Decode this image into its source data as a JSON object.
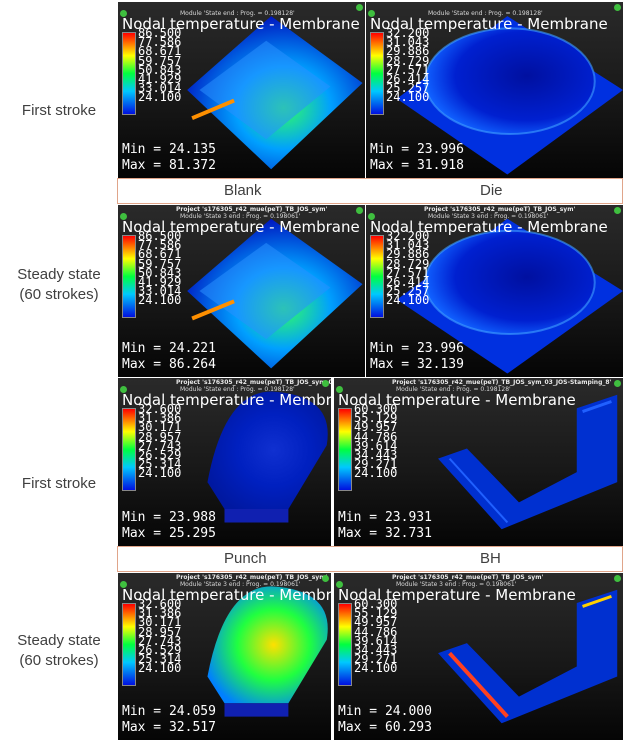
{
  "rows": [
    {
      "label": "First stroke"
    },
    {
      "label": "Steady state\n(60 strokes)"
    },
    {
      "label": "First stroke"
    },
    {
      "label": "Steady state\n(60 strokes)"
    }
  ],
  "separators": [
    {
      "left": "Blank",
      "right": "Die"
    },
    {
      "left": "Punch",
      "right": "BH"
    }
  ],
  "panels": [
    {
      "project": "",
      "module": "Module 'State end : Prog. = 0.198128'",
      "title": "Nodal temperature - Membrane",
      "ticks": [
        "86.500",
        "77.586",
        "68.671",
        "59.757",
        "50.843",
        "41.929",
        "33.014",
        "24.100"
      ],
      "min": "Min = 24.135",
      "max": "Max = 81.372"
    },
    {
      "project": "",
      "module": "Module 'State end : Prog. = 0.198128'",
      "title": "Nodal temperature - Membrane",
      "ticks": [
        "32.200",
        "31.043",
        "29.886",
        "28.729",
        "27.571",
        "26.414",
        "25.257",
        "24.100"
      ],
      "min": "Min = 23.996",
      "max": "Max = 31.918"
    },
    {
      "project": "Project 's176305_r42_mue(peT)_TB_JOS_sym'",
      "module": "Module 'State 3 end : Prog. = 0.198061'",
      "title": "Nodal temperature - Membrane",
      "ticks": [
        "86.500",
        "77.586",
        "68.671",
        "59.757",
        "50.843",
        "41.929",
        "33.014",
        "24.100"
      ],
      "min": "Min = 24.221",
      "max": "Max = 86.264"
    },
    {
      "project": "Project 's176305_r42_mue(peT)_TB_JOS_sym'",
      "module": "Module 'State 3 end : Prog. = 0.198061'",
      "title": "Nodal temperature - Membrane",
      "ticks": [
        "32.200",
        "31.043",
        "29.886",
        "28.729",
        "27.571",
        "26.414",
        "25.257",
        "24.100"
      ],
      "min": "Min = 23.996",
      "max": "Max = 32.139"
    },
    {
      "project": "Project 's176305_r42_mue(peT)_TB_JOS_sym_03_JOS-Stamping_8'",
      "module": "Module 'State end : Prog. = 0.198128'",
      "title": "Nodal temperature - Membrane",
      "ticks": [
        "32.600",
        "31.386",
        "30.171",
        "28.957",
        "27.743",
        "26.529",
        "25.314",
        "24.100"
      ],
      "min": "Min = 23.988",
      "max": "Max = 25.295"
    },
    {
      "project": "Project 's176305_r42_mue(peT)_TB_JOS_sym_03_JOS-Stamping_8'",
      "module": "Module 'State end : Prog. = 0.198128'",
      "title": "Nodal temperature - Membrane",
      "ticks": [
        "60.300",
        "55.129",
        "49.957",
        "44.786",
        "39.614",
        "34.443",
        "29.271",
        "24.100"
      ],
      "min": "Min = 23.931",
      "max": "Max = 32.731"
    },
    {
      "project": "Project 's176305_r42_mue(peT)_TB_JOS_sym'",
      "module": "Module 'State 3 end : Prog. = 0.198061'",
      "title": "Nodal temperature - Membrane",
      "ticks": [
        "32.600",
        "31.386",
        "30.171",
        "28.957",
        "27.743",
        "26.529",
        "25.314",
        "24.100"
      ],
      "min": "Min = 24.059",
      "max": "Max = 32.517"
    },
    {
      "project": "Project 's176305_r42_mue(peT)_TB_JOS_sym'",
      "module": "Module 'State 3 end : Prog. = 0.198061'",
      "title": "Nodal temperature - Membrane",
      "ticks": [
        "60.300",
        "55.129",
        "49.957",
        "44.786",
        "39.614",
        "34.443",
        "29.271",
        "24.100"
      ],
      "min": "Min = 24.000",
      "max": "Max = 60.293"
    }
  ]
}
